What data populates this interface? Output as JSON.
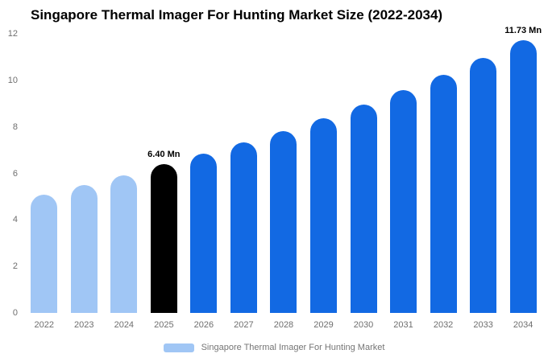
{
  "title": "Singapore Thermal Imager For Hunting Market Size (2022-2034)",
  "legend": {
    "label": "Singapore Thermal Imager For Hunting Market",
    "swatch_color": "#a0c6f5"
  },
  "chart_data": {
    "type": "bar",
    "title": "Singapore Thermal Imager For Hunting Market Size (2022-2034)",
    "categories": [
      "2022",
      "2023",
      "2024",
      "2025",
      "2026",
      "2027",
      "2028",
      "2029",
      "2030",
      "2031",
      "2032",
      "2033",
      "2034"
    ],
    "values": [
      5.1,
      5.5,
      5.9,
      6.4,
      6.85,
      7.32,
      7.83,
      8.38,
      8.96,
      9.59,
      10.25,
      10.97,
      11.73
    ],
    "bar_colors": [
      "#a0c6f5",
      "#a0c6f5",
      "#a0c6f5",
      "#000000",
      "#1269e3",
      "#1269e3",
      "#1269e3",
      "#1269e3",
      "#1269e3",
      "#1269e3",
      "#1269e3",
      "#1269e3",
      "#1269e3"
    ],
    "value_labels": [
      null,
      null,
      null,
      "6.40 Mn",
      null,
      null,
      null,
      null,
      null,
      null,
      null,
      null,
      "11.73 Mn"
    ],
    "xlabel": "",
    "ylabel": "",
    "ylim": [
      0,
      12
    ],
    "yticks": [
      0,
      2,
      4,
      6,
      8,
      10,
      12
    ],
    "grid": false,
    "legend_position": "bottom"
  }
}
